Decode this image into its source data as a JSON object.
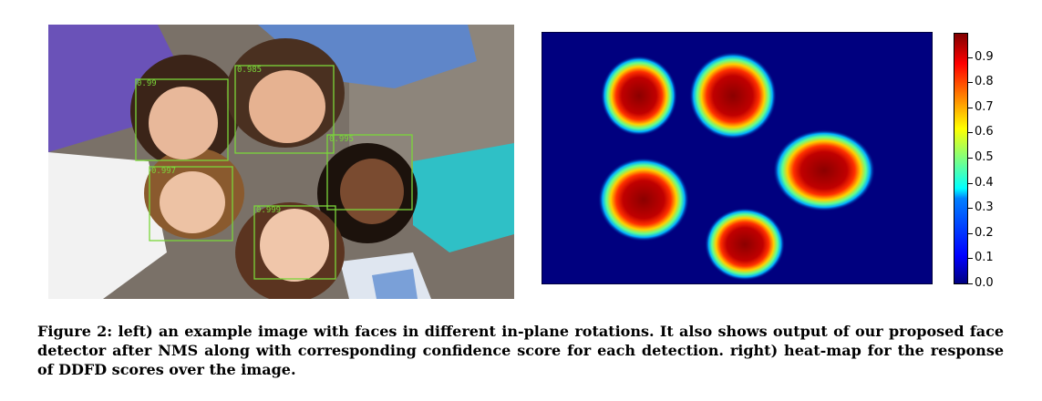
{
  "left_panel": {
    "detections": [
      {
        "score": "0.99"
      },
      {
        "score": "0.985"
      },
      {
        "score": "0.995"
      },
      {
        "score": "0.997"
      },
      {
        "score": "0.999"
      }
    ]
  },
  "colorbar": {
    "min": 0.0,
    "max": 1.0,
    "colormap": "jet",
    "ticks": [
      "0.0",
      "0.1",
      "0.2",
      "0.3",
      "0.4",
      "0.5",
      "0.6",
      "0.7",
      "0.8",
      "0.9"
    ]
  },
  "caption": {
    "label": "Figure 2:",
    "text": "left) an example image with faces in different in-plane rotations. It also shows output of our proposed face detector after NMS along with corresponding confidence score for each detection. right) heat-map for the response of DDFD scores over the image."
  },
  "colors": {
    "box_green": "#7bd63a",
    "heatmap_background": "#00007f"
  }
}
